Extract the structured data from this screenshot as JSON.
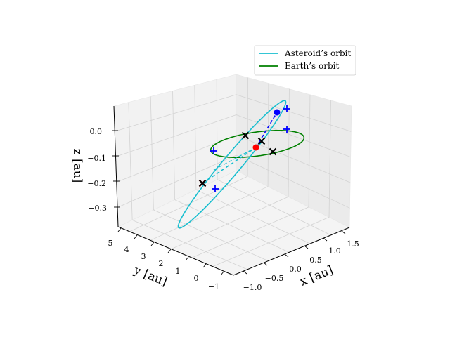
{
  "chart_data": {
    "type": "line3d",
    "title": "",
    "projection": "3d",
    "grid": true,
    "legend_position": "top-right",
    "axes": {
      "x": {
        "label": "x [au]",
        "ticks": [
          "−1.0",
          "−0.5",
          "0.0",
          "0.5",
          "1.0",
          "1.5"
        ],
        "range": [
          -1.1,
          1.7
        ]
      },
      "y": {
        "label": "y [au]",
        "ticks": [
          "−1",
          "0",
          "1",
          "2",
          "3",
          "4",
          "5"
        ],
        "range": [
          -1.3,
          5.2
        ]
      },
      "z": {
        "label": "z [au]",
        "ticks": [
          "−0.3",
          "−0.2",
          "−0.1",
          "0.0"
        ],
        "range": [
          -0.37,
          0.07
        ]
      }
    },
    "series": [
      {
        "name": "Asteroid’s orbit",
        "color": "#17becf",
        "style": "solid"
      },
      {
        "name": "Earth’s orbit",
        "color": "#008000",
        "style": "solid"
      }
    ],
    "markers": {
      "sun": {
        "color": "#ff0000",
        "symbol": "dot"
      },
      "asteroid_position": {
        "color": "#0000ff",
        "symbol": "dot"
      },
      "blue_plus": {
        "color": "#0000ff",
        "symbol": "+"
      },
      "black_x": {
        "color": "#000000",
        "symbol": "x"
      },
      "red_x": {
        "color": "#ff0000",
        "symbol": "x"
      }
    },
    "dashed_lines": [
      {
        "color": "#17becf",
        "style": "dashed"
      },
      {
        "color": "#0000ff",
        "style": "dashed"
      }
    ]
  }
}
